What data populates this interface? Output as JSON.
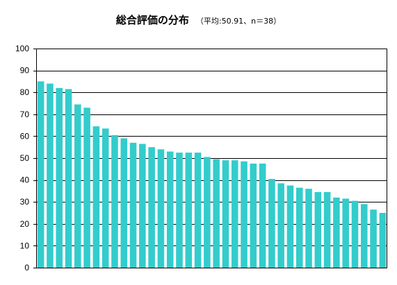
{
  "chart_data": {
    "type": "bar",
    "title": "総合評価の分布",
    "subtitle": "（平均:50.91、n＝38）",
    "xlabel": "",
    "ylabel": "",
    "ylim": [
      0,
      100
    ],
    "yticks": [
      0,
      10,
      20,
      30,
      40,
      50,
      60,
      70,
      80,
      90,
      100
    ],
    "grid": true,
    "bar_color": "#33cccc",
    "values": [
      85,
      84,
      82,
      81.5,
      74.5,
      73,
      64.5,
      63.5,
      60.5,
      59,
      57,
      56.5,
      55,
      54,
      53,
      52.5,
      52.5,
      52.5,
      50.5,
      49.5,
      49,
      49,
      48.5,
      47.5,
      47.5,
      40.5,
      38.5,
      37.5,
      36.5,
      36,
      34.5,
      34.5,
      32,
      31.5,
      30.5,
      29,
      26.5,
      25
    ]
  }
}
